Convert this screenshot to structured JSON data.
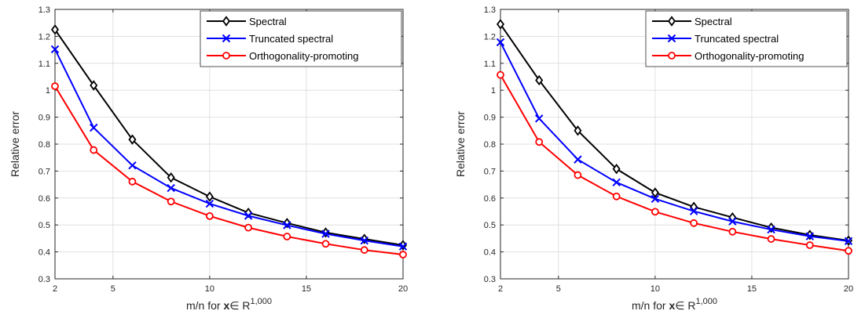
{
  "chart_data": [
    {
      "type": "line",
      "xlabel": "m/n for ",
      "xlabel_bold": "x",
      "xlabel_mid": "∈ R",
      "xlabel_sup": "1,000",
      "ylabel": "Relative error",
      "xlim": [
        2,
        20
      ],
      "ylim": [
        0.3,
        1.3
      ],
      "xticks": [
        "2",
        "5",
        "10",
        "15",
        "20"
      ],
      "yticks": [
        "0.3",
        "0.4",
        "0.5",
        "0.6",
        "0.7",
        "0.8",
        "0.9",
        "1",
        "1.1",
        "1.2",
        "1.3"
      ],
      "grid": true,
      "legend_position": "top-right",
      "x": [
        2,
        4,
        6,
        8,
        10,
        12,
        14,
        16,
        18,
        20
      ],
      "series": [
        {
          "name": "Spectral",
          "color": "#000000",
          "marker": "diamond",
          "values": [
            1.225,
            1.018,
            0.817,
            0.676,
            0.605,
            0.545,
            0.507,
            0.472,
            0.448,
            0.425
          ]
        },
        {
          "name": "Truncated spectral",
          "color": "#0000ff",
          "marker": "x",
          "values": [
            1.152,
            0.861,
            0.721,
            0.637,
            0.579,
            0.534,
            0.499,
            0.467,
            0.442,
            0.42
          ]
        },
        {
          "name": "Orthogonality-promoting",
          "color": "#ff0000",
          "marker": "circle",
          "values": [
            1.015,
            0.778,
            0.661,
            0.587,
            0.533,
            0.49,
            0.457,
            0.43,
            0.407,
            0.39
          ]
        }
      ]
    },
    {
      "type": "line",
      "xlabel": "m/n for ",
      "xlabel_bold": "x",
      "xlabel_mid": "∈ R",
      "xlabel_sup": "1,000",
      "ylabel": "Relative error",
      "xlim": [
        2,
        20
      ],
      "ylim": [
        0.3,
        1.3
      ],
      "xticks": [
        "2",
        "5",
        "10",
        "15",
        "20"
      ],
      "yticks": [
        "0.3",
        "0.4",
        "0.5",
        "0.6",
        "0.7",
        "0.8",
        "0.9",
        "1",
        "1.1",
        "1.2",
        "1.3"
      ],
      "grid": true,
      "legend_position": "top-right",
      "x": [
        2,
        4,
        6,
        8,
        10,
        12,
        14,
        16,
        18,
        20
      ],
      "series": [
        {
          "name": "Spectral",
          "color": "#000000",
          "marker": "diamond",
          "values": [
            1.245,
            1.037,
            0.85,
            0.708,
            0.62,
            0.567,
            0.528,
            0.49,
            0.463,
            0.442
          ]
        },
        {
          "name": "Truncated spectral",
          "color": "#0000ff",
          "marker": "x",
          "values": [
            1.178,
            0.895,
            0.743,
            0.658,
            0.597,
            0.551,
            0.513,
            0.483,
            0.458,
            0.44
          ]
        },
        {
          "name": "Orthogonality-promoting",
          "color": "#ff0000",
          "marker": "circle",
          "values": [
            1.057,
            0.808,
            0.685,
            0.606,
            0.549,
            0.507,
            0.475,
            0.448,
            0.425,
            0.404
          ]
        }
      ]
    }
  ]
}
